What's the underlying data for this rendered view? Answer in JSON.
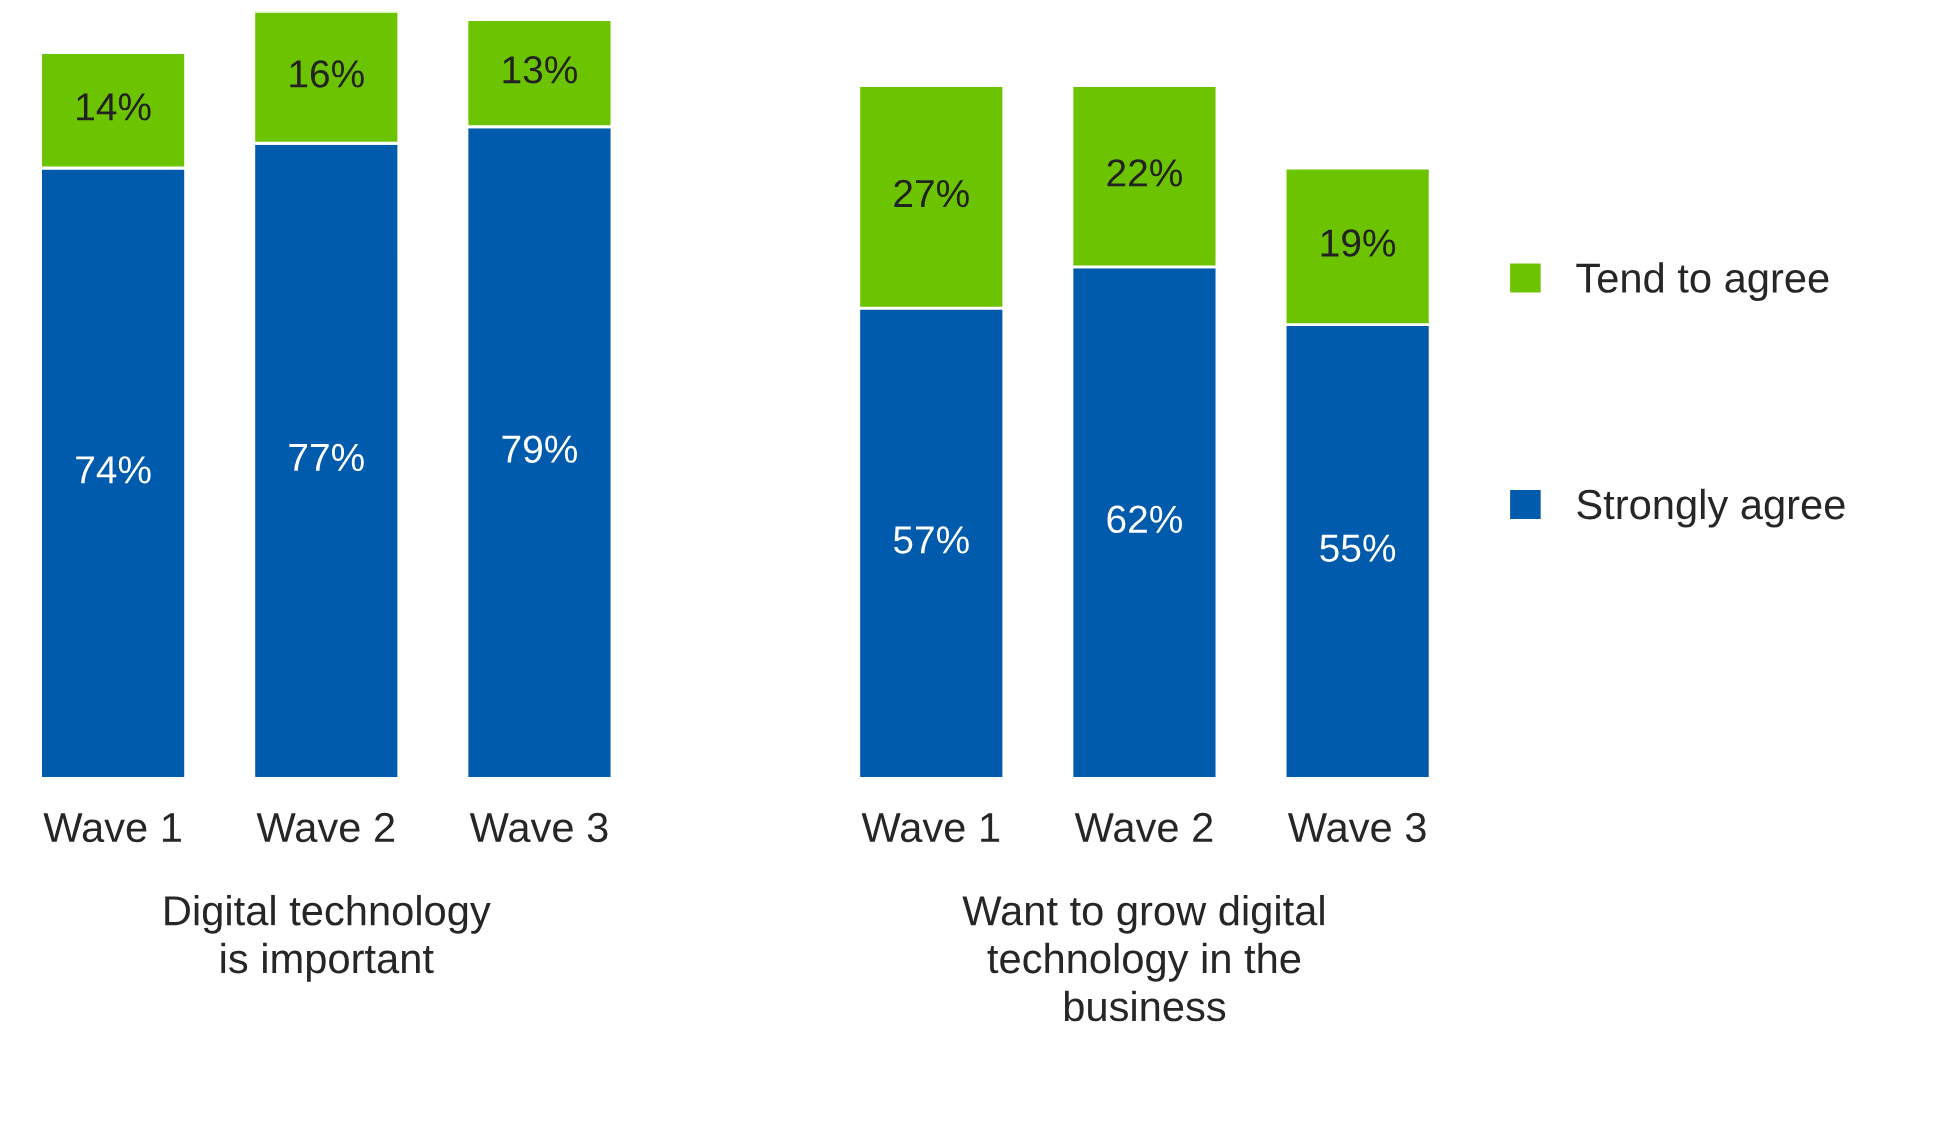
{
  "chart_data": [
    {
      "type": "bar",
      "stacked": true,
      "categories": [
        "Wave 1",
        "Wave 2",
        "Wave 3"
      ],
      "xlabel": "Digital technology\nis important",
      "tick_labels": "x",
      "series": [
        {
          "color": "#005bac",
          "values": [
            74,
            77,
            79
          ],
          "value_labels": [
            "74%",
            "77%",
            "79%"
          ]
        },
        {
          "color": "#6cc400",
          "values": [
            14,
            16,
            13
          ],
          "value_labels": [
            "14%",
            "16%",
            "13%"
          ]
        }
      ]
    },
    {
      "type": "bar",
      "stacked": true,
      "categories": [
        "Wave 1",
        "Wave 2",
        "Wave 3"
      ],
      "xlabel": "Want to grow digital\ntechnology in the\nbusiness",
      "tick_labels": "x",
      "legend": "right",
      "series": [
        {
          "name": "Strongly agree",
          "color": "#005bac",
          "values": [
            57,
            62,
            55
          ],
          "value_labels": [
            "57%",
            "62%",
            "55%"
          ]
        },
        {
          "name": "Tend to agree",
          "color": "#6cc400",
          "values": [
            27,
            22,
            19
          ],
          "value_labels": [
            "27%",
            "22%",
            "19%"
          ]
        }
      ]
    }
  ]
}
